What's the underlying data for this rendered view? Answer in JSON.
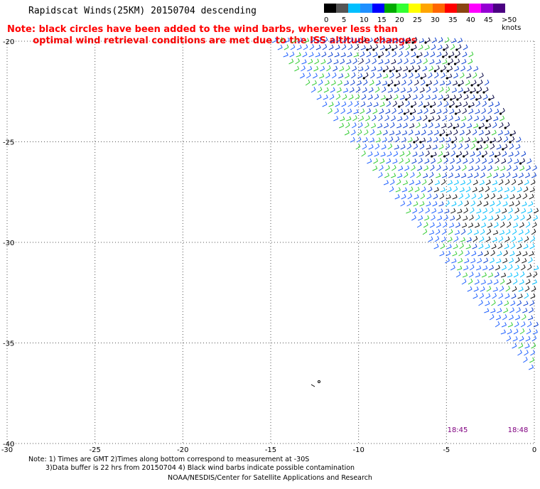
{
  "title": "Rapidscat Winds(25KM) 20150704 descending",
  "note": {
    "line1": "Note: black circles have been added to the wind barbs, wherever less than",
    "line2": "optimal wind retrieval conditions are met due to the ISS altitude changes"
  },
  "legend": {
    "unit": "knots",
    "colors": [
      "#000000",
      "#555555",
      "#00bfff",
      "#1e90ff",
      "#0000ff",
      "#00aa00",
      "#33ff33",
      "#ffff00",
      "#ffa500",
      "#ff6600",
      "#ff0000",
      "#8b4513",
      "#ff00ff",
      "#9400d3",
      "#4b0082"
    ],
    "labels": [
      "0",
      "5",
      "10",
      "15",
      "20",
      "25",
      "30",
      "35",
      "40",
      "45",
      ">50 knots"
    ]
  },
  "axes": {
    "x_ticks": [
      "-30",
      "-25",
      "-20",
      "-15",
      "-10",
      "-5",
      "0"
    ],
    "y_ticks": [
      "-20",
      "-25",
      "-30",
      "-35",
      "-40"
    ],
    "x_range": [
      -30,
      0
    ],
    "y_range": [
      -40,
      -20
    ],
    "grid": "dotted"
  },
  "swath_times": [
    "18:45",
    "18:48"
  ],
  "footnote": {
    "line1": "Note: 1) Times are GMT 2)Times along bottom correspond to measurement at -30S",
    "line2": "3)Data buffer is 22 hrs from 20150704 4) Black wind barbs indicate possible contamination"
  },
  "credit": "NOAA/NESDIS/Center for Satellite Applications and Research"
}
